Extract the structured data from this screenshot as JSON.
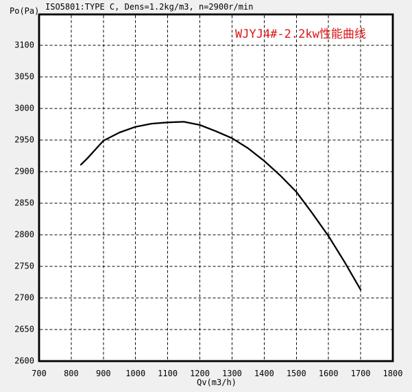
{
  "header": {
    "title": "ISO5801:TYPE C, Dens=1.2kg/m3, n=2900r/min"
  },
  "chart_data": {
    "type": "line",
    "title": "WJYJ4#-2.2kw性能曲线",
    "title_color": "#dd1414",
    "xlabel": "Qv(m3/h)",
    "ylabel": "Po(Pa)",
    "xlim": [
      700,
      1800
    ],
    "ylim": [
      2600,
      3149
    ],
    "x_ticks": [
      700,
      800,
      900,
      1000,
      1100,
      1200,
      1300,
      1400,
      1500,
      1600,
      1700,
      1800
    ],
    "y_ticks": [
      2600,
      2650,
      2700,
      2750,
      2800,
      2850,
      2900,
      2950,
      3000,
      3050,
      3100
    ],
    "grid": "dashed black, on both axes, inside white plot area",
    "legend_position": "none",
    "line_color": "#000000",
    "series": [
      {
        "name": "WJYJ4#-2.2kw performance curve (Po vs Qv)",
        "points": [
          [
            830,
            2911
          ],
          [
            850,
            2921
          ],
          [
            900,
            2949
          ],
          [
            950,
            2962
          ],
          [
            1000,
            2971
          ],
          [
            1050,
            2976
          ],
          [
            1100,
            2978
          ],
          [
            1150,
            2979
          ],
          [
            1200,
            2974
          ],
          [
            1250,
            2964
          ],
          [
            1300,
            2953
          ],
          [
            1350,
            2937
          ],
          [
            1400,
            2917
          ],
          [
            1450,
            2894
          ],
          [
            1500,
            2868
          ],
          [
            1550,
            2834
          ],
          [
            1600,
            2798
          ],
          [
            1650,
            2757
          ],
          [
            1700,
            2713
          ]
        ]
      }
    ]
  }
}
